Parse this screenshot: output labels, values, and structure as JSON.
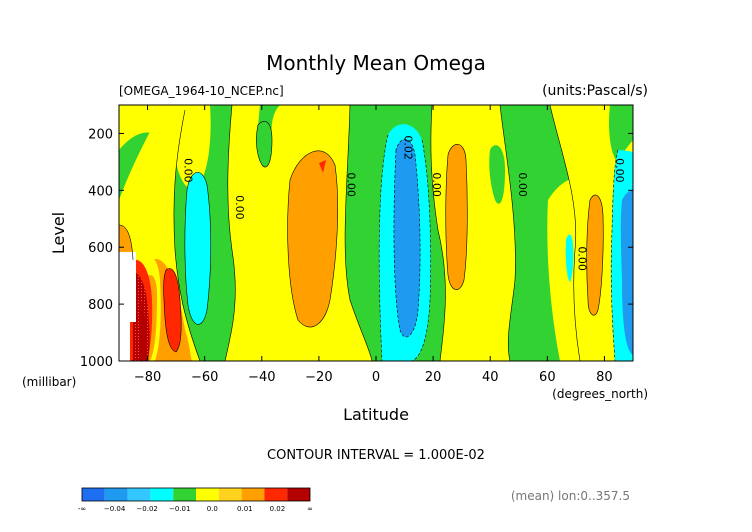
{
  "chart_data": {
    "type": "contour",
    "title": "Monthly Mean Omega",
    "source_file": "[OMEGA_1964-10_NCEP.nc]",
    "units": "(units:Pascal/s)",
    "xlabel": "Latitude",
    "x_units": "(degrees_north)",
    "ylabel": "Level",
    "y_units": "(millibar)",
    "xlim": [
      -90,
      90
    ],
    "ylim": [
      1000,
      100
    ],
    "x_ticks": [
      -80,
      -60,
      -40,
      -20,
      0,
      20,
      40,
      60,
      80
    ],
    "x_tick_labels": [
      "−80",
      "−60",
      "−40",
      "−20",
      "0",
      "20",
      "40",
      "60",
      "80"
    ],
    "y_ticks": [
      200,
      400,
      600,
      800,
      1000
    ],
    "y_tick_labels": [
      "200",
      "400",
      "600",
      "800",
      "1000"
    ],
    "contour_interval_text": "CONTOUR INTERVAL = 1.000E-02",
    "footer_text": "(mean) lon:0..357.5",
    "colorbar": {
      "colors": [
        "#1e6ef0",
        "#1e9bf0",
        "#32c8ff",
        "#00ffff",
        "#32d232",
        "#ffff00",
        "#ffd21e",
        "#ffa000",
        "#ff2800",
        "#b40000"
      ],
      "labels": [
        "-∞",
        "−0.04",
        "−0.02",
        "−0.01",
        "0.0",
        "0.01",
        "0.02",
        "∞"
      ]
    },
    "contour_labels": [
      {
        "text": "0.00",
        "lat": -67,
        "lev": 330
      },
      {
        "text": "0.00",
        "lat": -49,
        "lev": 460
      },
      {
        "text": "0.00",
        "lat": -10,
        "lev": 380
      },
      {
        "text": "0.02",
        "lat": 10,
        "lev": 250
      },
      {
        "text": "0.00",
        "lat": 20,
        "lev": 380
      },
      {
        "text": "0.00",
        "lat": 50,
        "lev": 380
      },
      {
        "text": "0.00",
        "lat": 71,
        "lev": 640
      },
      {
        "text": "0.00",
        "lat": 84,
        "lev": 330
      }
    ],
    "regions_note": "Filled omega field; positive (descending) bands near -20, 30, 75 degrees; negative (ascending) bands near -60, 10, 65, 90."
  }
}
